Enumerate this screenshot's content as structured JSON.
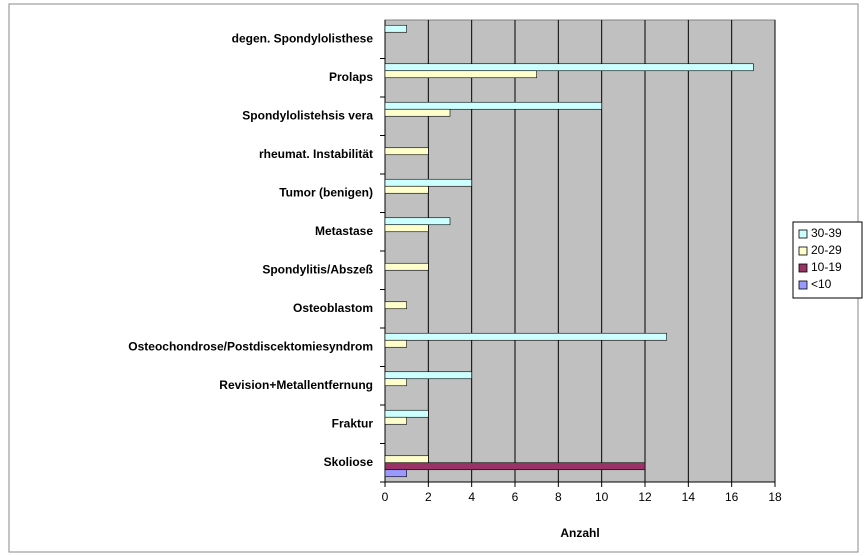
{
  "chart_data": {
    "type": "bar",
    "orientation": "horizontal",
    "xlabel": "Anzahl",
    "categories": [
      "degen. Spondylolisthese",
      "Prolaps",
      "Spondylolistehsis vera",
      "rheumat. Instabilität",
      "Tumor (benigen)",
      "Metastase",
      "Spondylitis/Abszeß",
      "Osteoblastom",
      "Osteochondrose/Postdiscektomiesyndrom",
      "Revision+Metallentfernung",
      "Fraktur",
      "Skoliose"
    ],
    "series": [
      {
        "name": "30-39",
        "color": "#ccffff",
        "values": [
          1,
          17,
          10,
          0,
          4,
          3,
          0,
          0,
          13,
          4,
          2,
          0
        ]
      },
      {
        "name": "20-29",
        "color": "#ffffcc",
        "values": [
          0,
          7,
          3,
          2,
          2,
          2,
          2,
          1,
          1,
          1,
          1,
          2
        ]
      },
      {
        "name": "10-19",
        "color": "#993366",
        "values": [
          0,
          0,
          0,
          0,
          0,
          0,
          0,
          0,
          0,
          0,
          0,
          12
        ]
      },
      {
        "name": "<10",
        "color": "#9999ff",
        "values": [
          0,
          0,
          0,
          0,
          0,
          0,
          0,
          0,
          0,
          0,
          0,
          1
        ]
      }
    ],
    "xlim": [
      0,
      18
    ],
    "xticks": [
      0,
      2,
      4,
      6,
      8,
      10,
      12,
      14,
      16,
      18
    ],
    "grid": true,
    "legend": "right",
    "plot_background": "#c0c0c0"
  }
}
